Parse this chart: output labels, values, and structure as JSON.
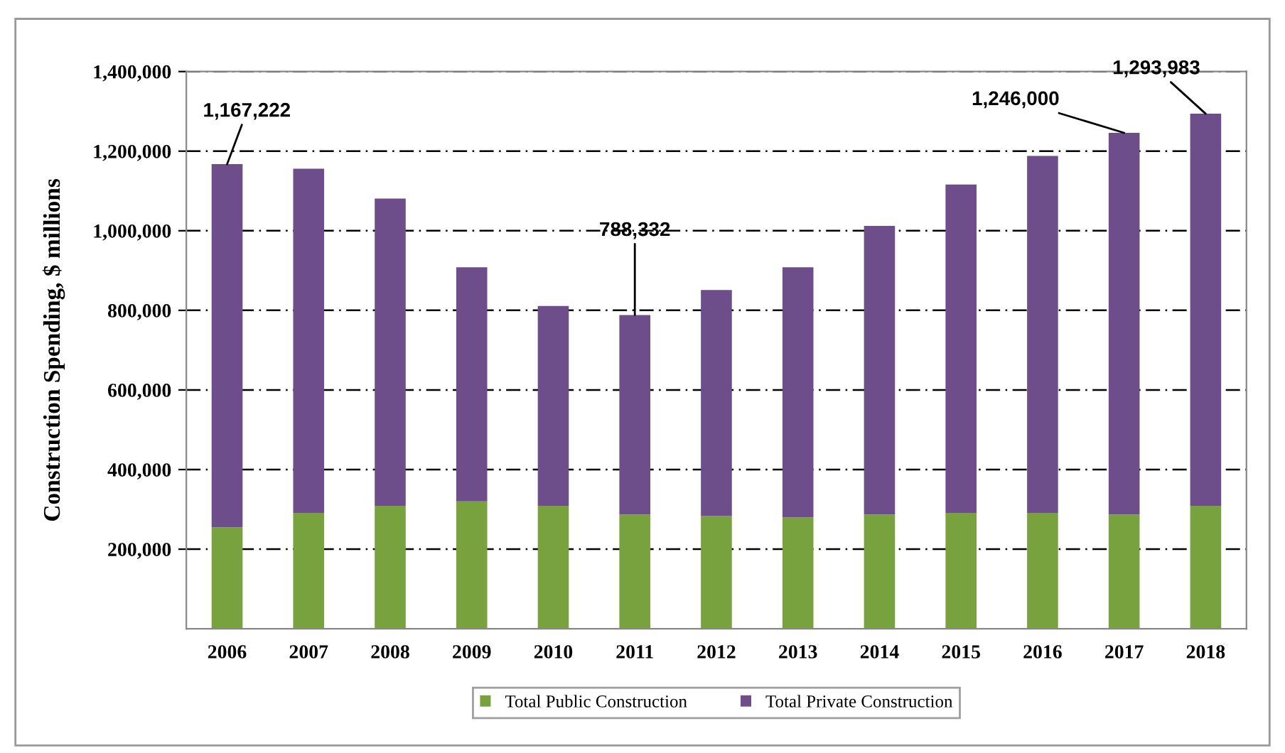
{
  "chart_data": {
    "type": "bar",
    "stacked": true,
    "ylabel": "Construction Spending, $ millions",
    "categories": [
      "2006",
      "2007",
      "2008",
      "2009",
      "2010",
      "2011",
      "2012",
      "2013",
      "2014",
      "2015",
      "2016",
      "2017",
      "2018"
    ],
    "series": [
      {
        "name": "Total Public Construction",
        "color": "#77a23e",
        "values": [
          255000,
          291000,
          309000,
          320000,
          309000,
          287000,
          283000,
          280000,
          287000,
          291000,
          291000,
          287000,
          309000
        ]
      },
      {
        "name": "Total Private Construction",
        "color": "#6e4e8a",
        "values": [
          912222,
          865000,
          772000,
          588000,
          502000,
          501332,
          568000,
          628000,
          725000,
          825000,
          897000,
          959000,
          984983
        ]
      }
    ],
    "ylim": [
      0,
      1400000
    ],
    "yticks": [
      {
        "value": 200000,
        "label": "200,000"
      },
      {
        "value": 400000,
        "label": "400,000"
      },
      {
        "value": 600000,
        "label": "600,000"
      },
      {
        "value": 800000,
        "label": "800,000"
      },
      {
        "value": 1000000,
        "label": "1,000,000"
      },
      {
        "value": 1200000,
        "label": "1,200,000"
      },
      {
        "value": 1400000,
        "label": "1,400,000"
      }
    ],
    "grid": "y",
    "line_style": "dashed",
    "legend": "bottom",
    "annotations": [
      {
        "text": "1,167,222",
        "x": "2006",
        "y": 1167222
      },
      {
        "text": "788,332",
        "x": "2011",
        "y": 788332
      },
      {
        "text": "1,246,000",
        "x": "2017",
        "y": 1246000
      },
      {
        "text": "1,293,983",
        "x": "2018",
        "y": 1293983
      }
    ]
  }
}
